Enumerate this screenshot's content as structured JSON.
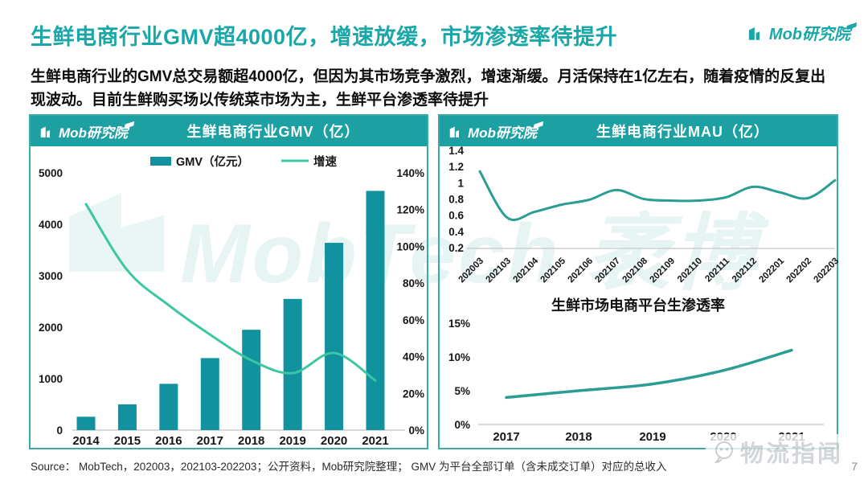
{
  "page": {
    "title": "生鲜电商行业GMV超4000亿，增速放缓，市场渗透率待提升",
    "subtitle": "生鲜电商行业的GMV总交易额超4000亿，但因为其市场竞争激烈，增速渐缓。月活保持在1亿左右，随着疫情的反复出现波动。目前生鲜购买场以传统菜市场为主，生鲜平台渗透率待提升",
    "source": "Source： MobTech，202003，202103-202203；公开资料，Mob研究院整理； GMV 为平台全部订单（含未成交订单）对应的总收入",
    "page_number": "7"
  },
  "branding": {
    "logo_text": "Mob研究院",
    "watermark_center": "MobTech 袤博",
    "watermark_corner": "物流指闻",
    "accent": "#1CA0A1",
    "title_color": "#1BA7A7"
  },
  "chart_data": [
    {
      "id": "gmv",
      "type": "bar",
      "title": "生鲜电商行业GMV（亿）",
      "categories": [
        "2014",
        "2015",
        "2016",
        "2017",
        "2018",
        "2019",
        "2020",
        "2021"
      ],
      "series": [
        {
          "name": "GMV（亿元）",
          "type": "bar",
          "axis": "left",
          "color": "#12929E",
          "values": [
            260,
            500,
            900,
            1400,
            1950,
            2550,
            3640,
            4650
          ]
        },
        {
          "name": "增速",
          "type": "line",
          "axis": "right",
          "color": "#3CC6A2",
          "values": [
            123,
            87,
            68,
            52,
            38,
            31,
            42,
            27
          ]
        }
      ],
      "left_axis": {
        "min": 0,
        "max": 5000,
        "step": 1000
      },
      "right_axis": {
        "min": 0,
        "max": 140,
        "step": 20,
        "suffix": "%"
      },
      "legend_position": "top",
      "grid": false
    },
    {
      "id": "mau",
      "type": "line",
      "title": "生鲜电商行业MAU（亿）",
      "categories": [
        "202003",
        "202103",
        "202104",
        "202105",
        "202106",
        "202107",
        "202108",
        "202109",
        "202110",
        "202111",
        "202112",
        "202201",
        "202202",
        "202203"
      ],
      "values": [
        1.15,
        0.58,
        0.65,
        0.74,
        0.8,
        0.92,
        0.81,
        0.79,
        0.79,
        0.83,
        0.96,
        0.89,
        0.82,
        1.04
      ],
      "color": "#2B9D95",
      "ylim": [
        0.2,
        1.4
      ],
      "ystep": 0.2,
      "grid": false
    },
    {
      "id": "penetration",
      "type": "line",
      "title": "生鲜市场电商平台生渗透率",
      "categories": [
        "2017",
        "2018",
        "2019",
        "2020",
        "2021"
      ],
      "values": [
        4,
        5,
        6,
        8,
        11
      ],
      "color": "#2B9D95",
      "ylim": [
        0,
        15
      ],
      "ystep": 5,
      "suffix": "%",
      "grid": false
    }
  ]
}
